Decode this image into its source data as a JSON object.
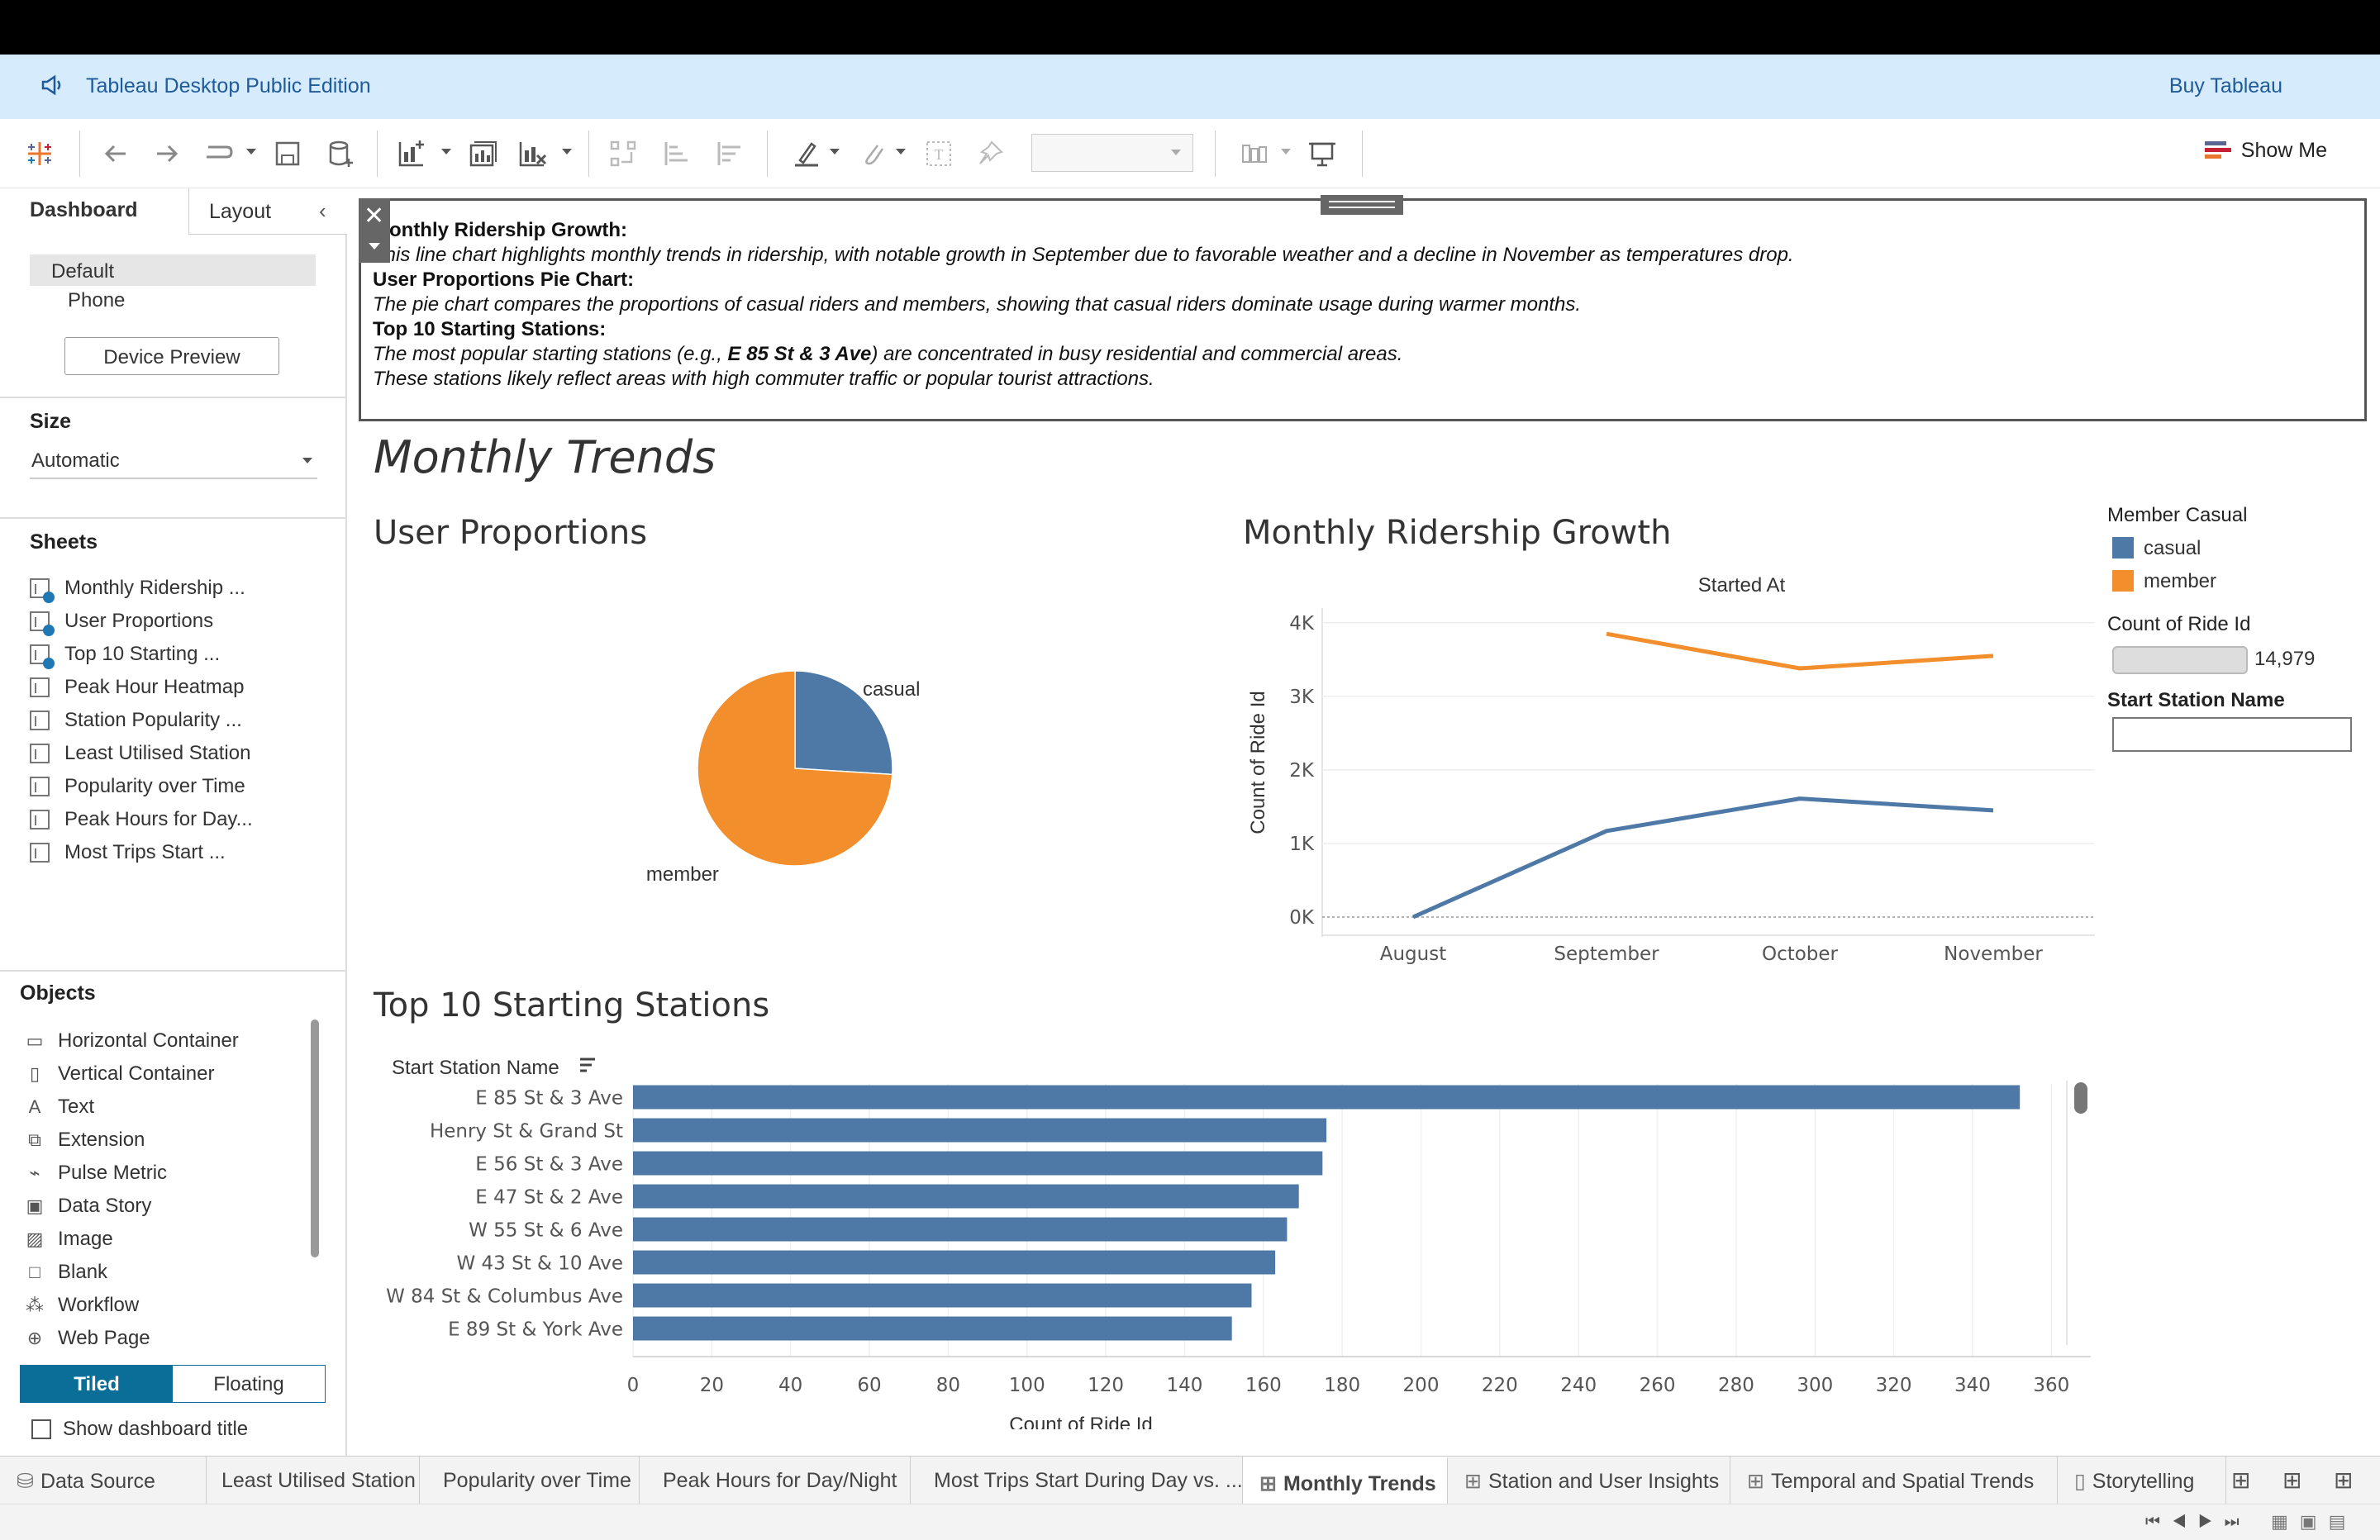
{
  "app": {
    "title": "Tableau Desktop Public Edition",
    "buy_label": "Buy Tableau"
  },
  "toolbar": {
    "show_me_label": "Show Me"
  },
  "left_pane": {
    "tabs": {
      "dashboard": "Dashboard",
      "layout": "Layout"
    },
    "device": {
      "default": "Default",
      "phone": "Phone",
      "preview_button": "Device Preview"
    },
    "size": {
      "title": "Size",
      "value": "Automatic"
    },
    "sheets_title": "Sheets",
    "sheets": [
      {
        "label": "Monthly Ridership ...",
        "used": true
      },
      {
        "label": "User Proportions",
        "used": true
      },
      {
        "label": "Top 10 Starting ...",
        "used": true
      },
      {
        "label": "Peak Hour Heatmap",
        "used": false
      },
      {
        "label": "Station Popularity ...",
        "used": false
      },
      {
        "label": "Least Utilised Station",
        "used": false
      },
      {
        "label": "Popularity over Time",
        "used": false
      },
      {
        "label": "Peak Hours for Day...",
        "used": false
      },
      {
        "label": "Most Trips Start ...",
        "used": false
      }
    ],
    "objects_title": "Objects",
    "objects": [
      {
        "label": "Horizontal Container",
        "icon": "horizontal-container-icon"
      },
      {
        "label": "Vertical Container",
        "icon": "vertical-container-icon"
      },
      {
        "label": "Text",
        "icon": "text-icon"
      },
      {
        "label": "Extension",
        "icon": "extension-icon"
      },
      {
        "label": "Pulse Metric",
        "icon": "pulse-metric-icon"
      },
      {
        "label": "Data Story",
        "icon": "data-story-icon"
      },
      {
        "label": "Image",
        "icon": "image-icon"
      },
      {
        "label": "Blank",
        "icon": "blank-icon"
      },
      {
        "label": "Workflow",
        "icon": "workflow-icon"
      },
      {
        "label": "Web Page",
        "icon": "web-page-icon"
      }
    ],
    "tiled_label": "Tiled",
    "floating_label": "Floating",
    "show_title_label": "Show dashboard title"
  },
  "textbox": {
    "lines": [
      "Monthly Ridership Growth:",
      "This line chart highlights monthly trends in ridership, with notable growth in September due to favorable weather and a decline in November as temperatures drop.",
      "User Proportions Pie Chart:",
      "The pie chart compares the proportions of casual riders and members, showing that casual riders dominate usage during warmer months.",
      "Top 10 Starting Stations:",
      "The most popular starting stations (e.g., ",
      "E 85 St & 3 Ave",
      ") are concentrated in busy residential and commercial areas.",
      "These stations likely reflect areas with high commuter traffic or popular tourist attractions."
    ]
  },
  "dashboard": {
    "title": "Monthly Trends",
    "pie_title": "User Proportions",
    "line_title": "Monthly Ridership Growth",
    "bar_title": "Top 10 Starting Stations"
  },
  "legend": {
    "color_title": "Member Casual",
    "items": [
      {
        "label": "casual",
        "color": "#4e79a7"
      },
      {
        "label": "member",
        "color": "#f28e2b"
      }
    ],
    "size_title": "Count of Ride Id",
    "size_value": "14,979",
    "filter_title": "Start Station Name"
  },
  "chart_data": [
    {
      "type": "pie",
      "title": "User Proportions",
      "slices": [
        {
          "label": "casual",
          "value": 26,
          "color": "#4e79a7"
        },
        {
          "label": "member",
          "value": 74,
          "color": "#f28e2b"
        }
      ]
    },
    {
      "type": "line",
      "title": "Monthly Ridership Growth",
      "header": "Started At",
      "categories": [
        "August",
        "September",
        "October",
        "November"
      ],
      "ylabel": "Count of Ride Id",
      "yticks": [
        "0K",
        "1K",
        "2K",
        "3K",
        "4K"
      ],
      "ylim": [
        0,
        4200
      ],
      "series": [
        {
          "name": "casual",
          "color": "#4e79a7",
          "values": [
            0,
            1170,
            1610,
            1450
          ]
        },
        {
          "name": "member",
          "color": "#f28e2b",
          "values": [
            null,
            3850,
            3380,
            3550
          ]
        }
      ]
    },
    {
      "type": "bar",
      "title": "Top 10 Starting Stations",
      "ylabel": "Start Station Name",
      "xlabel": "Count of Ride Id",
      "xlim": [
        0,
        370
      ],
      "xticks": [
        0,
        20,
        40,
        60,
        80,
        100,
        120,
        140,
        160,
        180,
        200,
        220,
        240,
        260,
        280,
        300,
        320,
        340,
        360
      ],
      "categories": [
        "E 85 St & 3 Ave",
        "Henry St & Grand St",
        "E 56 St & 3 Ave",
        "E 47 St & 2 Ave",
        "W 55 St & 6 Ave",
        "W 43 St & 10 Ave",
        "W 84 St & Columbus Ave",
        "E 89 St & York Ave"
      ],
      "values": [
        352,
        176,
        175,
        169,
        166,
        163,
        157,
        152
      ],
      "color": "#4e79a7"
    }
  ],
  "bottom_tabs": [
    {
      "label": "Data Source",
      "active": false
    },
    {
      "label": "Least Utilised Station",
      "active": false
    },
    {
      "label": "Popularity over Time",
      "active": false
    },
    {
      "label": "Peak Hours for Day/Night",
      "active": false
    },
    {
      "label": "Most Trips Start During Day vs. ...",
      "active": false
    },
    {
      "label": "Monthly Trends",
      "active": true
    },
    {
      "label": "Station and User Insights",
      "active": false
    },
    {
      "label": "Temporal and Spatial Trends",
      "active": false
    },
    {
      "label": "Storytelling",
      "active": false
    }
  ]
}
